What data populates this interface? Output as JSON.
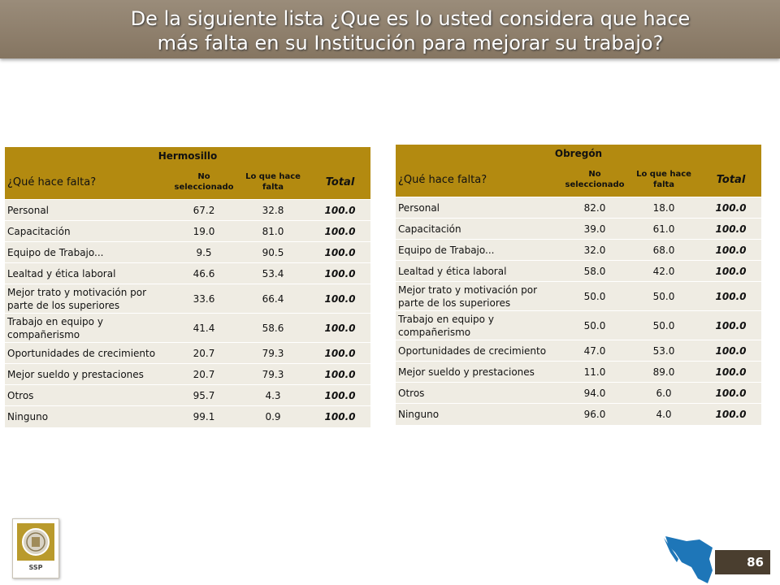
{
  "header": {
    "title_line1": "De la siguiente lista ¿Que es lo usted considera que hace",
    "title_line2": "más falta en su Institución para mejorar su trabajo?"
  },
  "colors": {
    "banner": "#8f8069",
    "table_header": "#b38a10",
    "table_body": "#efece3",
    "page_box": "#4a3e2f"
  },
  "tables": [
    {
      "city": "Hermosillo",
      "question_header": "¿Qué hace falta?",
      "col_no": "No seleccionado",
      "col_yes": "Lo que hace falta",
      "col_total": "Total",
      "rows": [
        {
          "label": "Personal",
          "no": "67.2",
          "yes": "32.8",
          "total": "100.0"
        },
        {
          "label": "Capacitación",
          "no": "19.0",
          "yes": "81.0",
          "total": "100.0"
        },
        {
          "label": "Equipo de Trabajo...",
          "no": "9.5",
          "yes": "90.5",
          "total": "100.0"
        },
        {
          "label": "Lealtad y ética laboral",
          "no": "46.6",
          "yes": "53.4",
          "total": "100.0"
        },
        {
          "label": "Mejor trato y motivación por parte de los superiores",
          "no": "33.6",
          "yes": "66.4",
          "total": "100.0"
        },
        {
          "label": "Trabajo en equipo y compañerismo",
          "no": "41.4",
          "yes": "58.6",
          "total": "100.0"
        },
        {
          "label": "Oportunidades de crecimiento",
          "no": "20.7",
          "yes": "79.3",
          "total": "100.0"
        },
        {
          "label": "Mejor sueldo y prestaciones",
          "no": "20.7",
          "yes": "79.3",
          "total": "100.0"
        },
        {
          "label": "Otros",
          "no": "95.7",
          "yes": "4.3",
          "total": "100.0"
        },
        {
          "label": "Ninguno",
          "no": "99.1",
          "yes": "0.9",
          "total": "100.0"
        }
      ]
    },
    {
      "city": "Obregón",
      "question_header": "¿Qué hace falta?",
      "col_no": "No seleccionado",
      "col_yes": "Lo que hace falta",
      "col_total": "Total",
      "rows": [
        {
          "label": "Personal",
          "no": "82.0",
          "yes": "18.0",
          "total": "100.0"
        },
        {
          "label": "Capacitación",
          "no": "39.0",
          "yes": "61.0",
          "total": "100.0"
        },
        {
          "label": "Equipo de Trabajo...",
          "no": "32.0",
          "yes": "68.0",
          "total": "100.0"
        },
        {
          "label": "Lealtad y ética laboral",
          "no": "58.0",
          "yes": "42.0",
          "total": "100.0"
        },
        {
          "label": "Mejor trato y motivación por parte de los superiores",
          "no": "50.0",
          "yes": "50.0",
          "total": "100.0"
        },
        {
          "label": "Trabajo en equipo y compañerismo",
          "no": "50.0",
          "yes": "50.0",
          "total": "100.0"
        },
        {
          "label": "Oportunidades de crecimiento",
          "no": "47.0",
          "yes": "53.0",
          "total": "100.0"
        },
        {
          "label": "Mejor sueldo y prestaciones",
          "no": "11.0",
          "yes": "89.0",
          "total": "100.0"
        },
        {
          "label": "Otros",
          "no": "94.0",
          "yes": "6.0",
          "total": "100.0"
        },
        {
          "label": "Ninguno",
          "no": "96.0",
          "yes": "4.0",
          "total": "100.0"
        }
      ]
    }
  ],
  "footer": {
    "logo_text": "SSP",
    "logo_icon": "seal-icon",
    "map_icon": "sonora-map-icon",
    "page_number": "86"
  }
}
